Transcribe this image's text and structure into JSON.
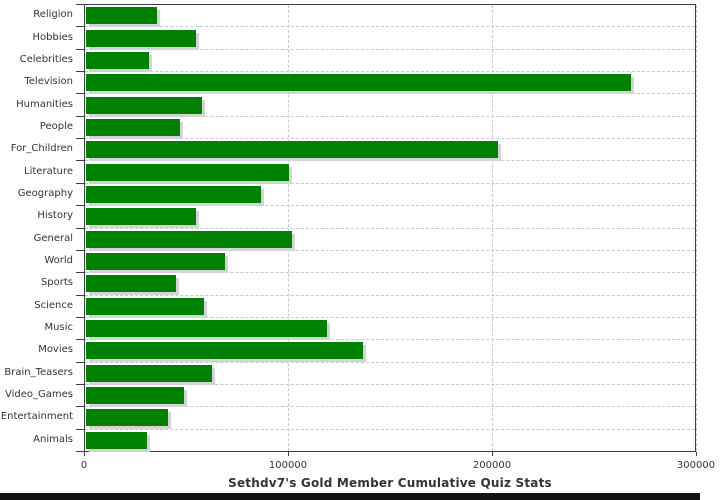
{
  "chart_data": {
    "type": "bar",
    "orientation": "horizontal",
    "title": "Sethdv7's Gold Member Cumulative Quiz Stats",
    "categories": [
      "Religion",
      "Hobbies",
      "Celebrities",
      "Television",
      "Humanities",
      "People",
      "For_Children",
      "Literature",
      "Geography",
      "History",
      "General",
      "World",
      "Sports",
      "Science",
      "Music",
      "Movies",
      "Brain_Teasers",
      "Video_Games",
      "Entertainment",
      "Animals"
    ],
    "values": [
      35000,
      54000,
      31000,
      267000,
      57000,
      46000,
      202000,
      99500,
      86000,
      54000,
      101000,
      68000,
      44000,
      58000,
      118000,
      136000,
      62000,
      48000,
      40000,
      30000
    ],
    "xlabel": "",
    "ylabel": "",
    "xlim": [
      0,
      300000
    ],
    "x_tick_values": [
      0,
      100000,
      200000,
      300000
    ],
    "x_tick_labels": [
      "0",
      "100000",
      "200000",
      "300000"
    ],
    "grid": true,
    "legend": false,
    "bar_color": "#008000",
    "bar_shadow_color": "#d4d4d4",
    "gridline_color": "#c9c9c9",
    "axis_color": "#3f3f3f",
    "text_color": "#333333"
  }
}
